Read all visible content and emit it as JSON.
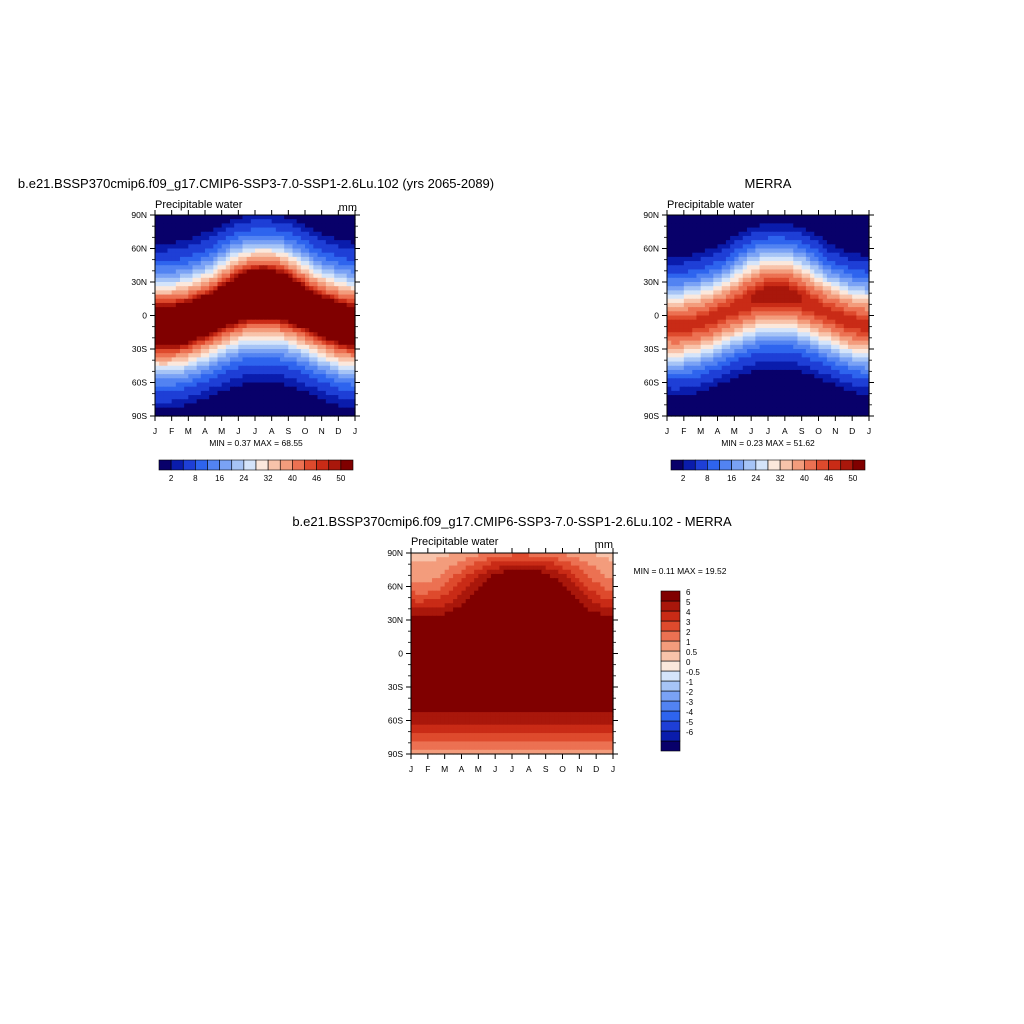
{
  "chart_data": [
    {
      "type": "heatmap",
      "title": "b.e21.BSSP370cmip6.f09_g17.CMIP6-SSP3-7.0-SSP1-2.6Lu.102 (yrs 2065-2089)",
      "subtitle": "Precipitable water",
      "units": "mm",
      "stats": "MIN =   0.37 MAX =  68.55",
      "x_ticks": [
        "J",
        "F",
        "M",
        "A",
        "M",
        "J",
        "J",
        "A",
        "S",
        "O",
        "N",
        "D",
        "J"
      ],
      "y_ticks": [
        "90N",
        "60N",
        "30N",
        "0",
        "30S",
        "60S",
        "90S"
      ],
      "colorbar": {
        "labels": [
          "2",
          "8",
          "16",
          "24",
          "32",
          "40",
          "46",
          "50"
        ],
        "levels": [
          2,
          4,
          8,
          12,
          16,
          20,
          24,
          28,
          32,
          36,
          40,
          44,
          46,
          48,
          50
        ]
      },
      "palette": [
        "#08006a",
        "#0a1cac",
        "#1e3fd6",
        "#2e64ee",
        "#5283f2",
        "#7aa2f5",
        "#a6c4f6",
        "#d4e4fa",
        "#fbe8dc",
        "#f8c3aa",
        "#f39c7c",
        "#ec7152",
        "#de4a2d",
        "#c92b16",
        "#a9170b",
        "#800000"
      ],
      "field": {
        "model": "model",
        "peak": 60,
        "equator_peak_lat_amp": 13,
        "equator_peak_lat_mean": 3
      }
    },
    {
      "type": "heatmap",
      "title": "MERRA",
      "subtitle": "Precipitable water",
      "units": "",
      "stats": "MIN =   0.23 MAX =  51.62",
      "x_ticks": [
        "J",
        "F",
        "M",
        "A",
        "M",
        "J",
        "J",
        "A",
        "S",
        "O",
        "N",
        "D",
        "J"
      ],
      "y_ticks": [
        "90N",
        "60N",
        "30N",
        "0",
        "30S",
        "60S",
        "90S"
      ],
      "colorbar": {
        "labels": [
          "2",
          "8",
          "16",
          "24",
          "32",
          "40",
          "46",
          "50"
        ],
        "levels": [
          2,
          4,
          8,
          12,
          16,
          20,
          24,
          28,
          32,
          36,
          40,
          44,
          46,
          48,
          50
        ]
      },
      "palette": [
        "#08006a",
        "#0a1cac",
        "#1e3fd6",
        "#2e64ee",
        "#5283f2",
        "#7aa2f5",
        "#a6c4f6",
        "#d4e4fa",
        "#fbe8dc",
        "#f8c3aa",
        "#f39c7c",
        "#ec7152",
        "#de4a2d",
        "#c92b16",
        "#a9170b",
        "#800000"
      ],
      "field": {
        "model": "obs",
        "peak": 47
      }
    },
    {
      "type": "heatmap",
      "title": "b.e21.BSSP370cmip6.f09_g17.CMIP6-SSP3-7.0-SSP1-2.6Lu.102 - MERRA",
      "subtitle": "Precipitable water",
      "units": "mm",
      "stats": "MIN =   0.11 MAX =  19.52",
      "x_ticks": [
        "J",
        "F",
        "M",
        "A",
        "M",
        "J",
        "J",
        "A",
        "S",
        "O",
        "N",
        "D",
        "J"
      ],
      "y_ticks": [
        "90N",
        "60N",
        "30N",
        "0",
        "30S",
        "60S",
        "90S"
      ],
      "colorbar": {
        "labels": [
          "6",
          "5",
          "4",
          "3",
          "2",
          "1",
          "0.5",
          "0",
          "-0.5",
          "-1",
          "-2",
          "-3",
          "-4",
          "-5",
          "-6"
        ],
        "levels": [
          -6,
          -5,
          -4,
          -3,
          -2,
          -1,
          -0.5,
          0,
          0.5,
          1,
          2,
          3,
          4,
          5,
          6
        ]
      },
      "palette": [
        "#08006a",
        "#0a1cac",
        "#1e3fd6",
        "#2e64ee",
        "#5283f2",
        "#7aa2f5",
        "#a6c4f6",
        "#d4e4fa",
        "#fbe8dc",
        "#f8c3aa",
        "#f39c7c",
        "#ec7152",
        "#de4a2d",
        "#c92b16",
        "#a9170b",
        "#800000"
      ],
      "field": {
        "model": "diff"
      }
    }
  ]
}
